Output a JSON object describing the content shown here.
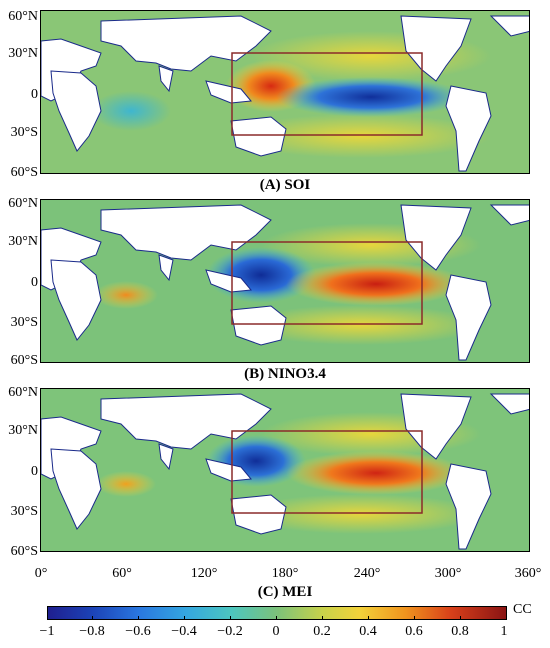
{
  "panels": [
    {
      "caption": "(A) SOI",
      "lat_labels": [
        "60°N",
        "30°N",
        "0",
        "30°S",
        "60°S"
      ],
      "pattern": "soi"
    },
    {
      "caption": "(B) NINO3.4",
      "lat_labels": [
        "60°N",
        "30°N",
        "0",
        "30°S",
        "60°S"
      ],
      "pattern": "nino"
    },
    {
      "caption": "(C) MEI",
      "lat_labels": [
        "60°N",
        "30°N",
        "0",
        "30°S",
        "60°S"
      ],
      "pattern": "mei"
    }
  ],
  "lon_labels": [
    "0°",
    "60°",
    "120°",
    "180°",
    "240°",
    "300°",
    "360°"
  ],
  "colorbar": {
    "ticks": [
      "−1",
      "−0.8",
      "−0.6",
      "−0.4",
      "−0.2",
      "0",
      "0.2",
      "0.4",
      "0.6",
      "0.8",
      "1"
    ],
    "unit": "CC",
    "colors": {
      "min": "#1f1f8f",
      "mid": "#7cc27a",
      "max": "#8a1414"
    }
  },
  "box": {
    "color": "#8a2a2a",
    "lon_range_deg": [
      140,
      280
    ],
    "lat_range_deg": [
      -30,
      30
    ]
  },
  "coastline_color": "#1a2a8a"
}
